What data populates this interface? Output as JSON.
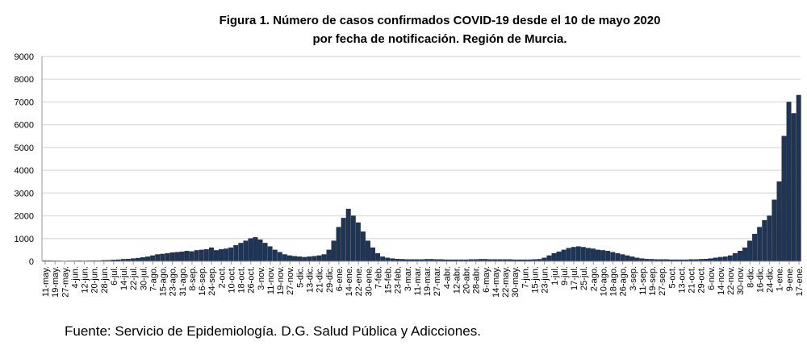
{
  "chart_data": {
    "type": "bar",
    "title": [
      "Figura 1. Número de casos confirmados COVID-19 desde el 10 de mayo 2020",
      "por fecha de notificación. Región de Murcia."
    ],
    "source": "Fuente: Servicio de Epidemiología. D.G. Salud Pública y Adicciones.",
    "xlabel": "",
    "ylabel": "",
    "ylim": [
      0,
      9000
    ],
    "yticks": [
      0,
      1000,
      2000,
      3000,
      4000,
      5000,
      6000,
      7000,
      8000,
      9000
    ],
    "grid": true,
    "bar_color": "#1f3556",
    "x_start": "11-may-2020",
    "x_step_days": 4,
    "xtick_step_days": 8,
    "xtick_labels": [
      "11-may.",
      "19-may.",
      "27-may.",
      "4-jun.",
      "12-jun.",
      "20-jun.",
      "28-jun.",
      "6-jul.",
      "14-jul.",
      "22-jul.",
      "30-jul.",
      "7-ago.",
      "15-ago.",
      "23-ago.",
      "31-ago.",
      "8-sep.",
      "16-sep.",
      "24-sep.",
      "2-oct.",
      "10-oct.",
      "18-oct.",
      "26-oct.",
      "3-nov.",
      "11-nov.",
      "19-nov.",
      "27-nov.",
      "5-dic.",
      "13-dic.",
      "21-dic.",
      "29-dic.",
      "6-ene.",
      "14-ene.",
      "22-ene.",
      "30-ene.",
      "7-feb.",
      "15-feb.",
      "23-feb.",
      "3-mar.",
      "11-mar.",
      "19-mar.",
      "27-mar.",
      "4-abr.",
      "12-abr.",
      "20-abr.",
      "28-abr.",
      "6-may.",
      "14-may.",
      "22-may.",
      "30-may.",
      "7-jun.",
      "15-jun.",
      "23-jun.",
      "1-jul.",
      "9-jul.",
      "17-jul.",
      "25-jul.",
      "2-ago.",
      "10-ago.",
      "18-ago.",
      "26-ago.",
      "3-sep.",
      "11-sep.",
      "19-sep.",
      "27-sep.",
      "5-oct.",
      "13-oct.",
      "21-oct.",
      "29-oct.",
      "6-nov.",
      "14-nov.",
      "22-nov.",
      "30-nov.",
      "8-dic.",
      "16-dic.",
      "24-dic.",
      "1-ene.",
      "9-ene.",
      "17-ene."
    ],
    "values": [
      30,
      25,
      20,
      20,
      15,
      20,
      20,
      25,
      20,
      25,
      30,
      30,
      40,
      45,
      60,
      70,
      90,
      100,
      120,
      140,
      170,
      200,
      250,
      300,
      320,
      350,
      380,
      400,
      420,
      450,
      430,
      480,
      500,
      520,
      600,
      480,
      520,
      550,
      600,
      700,
      800,
      900,
      1000,
      1050,
      950,
      800,
      650,
      500,
      400,
      300,
      250,
      220,
      200,
      180,
      200,
      220,
      250,
      300,
      500,
      900,
      1500,
      1900,
      2300,
      2000,
      1700,
      1300,
      900,
      600,
      350,
      200,
      150,
      120,
      100,
      90,
      80,
      80,
      80,
      80,
      90,
      90,
      80,
      80,
      70,
      70,
      70,
      70,
      70,
      80,
      80,
      90,
      90,
      80,
      80,
      80,
      80,
      80,
      70,
      70,
      70,
      70,
      80,
      90,
      150,
      250,
      350,
      420,
      500,
      580,
      620,
      650,
      620,
      580,
      550,
      500,
      480,
      450,
      400,
      350,
      300,
      250,
      200,
      150,
      120,
      100,
      90,
      80,
      80,
      80,
      70,
      70,
      70,
      70,
      80,
      80,
      90,
      100,
      120,
      150,
      180,
      200,
      250,
      350,
      450,
      600,
      900,
      1200,
      1500,
      1800,
      2000,
      2700,
      3500,
      5500,
      7000,
      6500,
      7300
    ]
  }
}
